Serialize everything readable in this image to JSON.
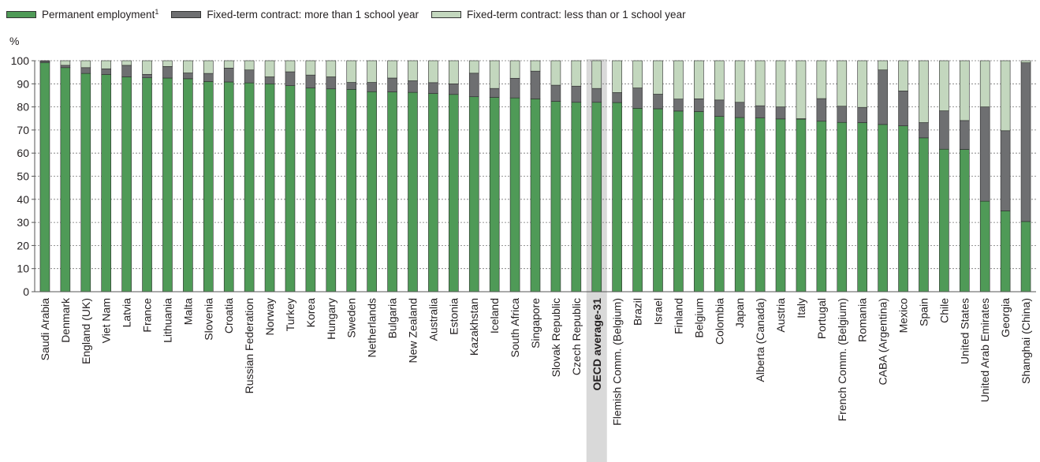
{
  "chart_data": {
    "type": "bar",
    "stacked": true,
    "ylabel": "%",
    "ylim": [
      0,
      100
    ],
    "yticks": [
      0,
      10,
      20,
      30,
      40,
      50,
      60,
      70,
      80,
      90,
      100
    ],
    "grid": true,
    "legend_position": "top",
    "highlight_category": "OECD average-31",
    "categories": [
      "Saudi Arabia",
      "Denmark",
      "England (UK)",
      "Viet Nam",
      "Latvia",
      "France",
      "Lithuania",
      "Malta",
      "Slovenia",
      "Croatia",
      "Russian Federation",
      "Norway",
      "Turkey",
      "Korea",
      "Hungary",
      "Sweden",
      "Netherlands",
      "Bulgaria",
      "New Zealand",
      "Australia",
      "Estonia",
      "Kazakhstan",
      "Iceland",
      "South Africa",
      "Singapore",
      "Slovak Republic",
      "Czech Republic",
      "OECD average-31",
      "Flemish Comm. (Belgium)",
      "Brazil",
      "Israel",
      "Finland",
      "Belgium",
      "Colombia",
      "Japan",
      "Alberta (Canada)",
      "Austria",
      "Italy",
      "Portugal",
      "French Comm. (Belgium)",
      "Romania",
      "CABA (Argentina)",
      "Mexico",
      "Spain",
      "Chile",
      "United States",
      "United Arab Emirates",
      "Georgia",
      "Shanghai (China)"
    ],
    "series": [
      {
        "name": "Permanent employment",
        "name_sup": "1",
        "color": "#4f9a57",
        "values": [
          99.2,
          97.0,
          94.5,
          94.0,
          93.0,
          92.6,
          92.5,
          92.2,
          91.0,
          90.8,
          90.4,
          90.0,
          89.2,
          88.2,
          87.8,
          87.6,
          86.6,
          86.5,
          86.3,
          85.8,
          85.4,
          84.4,
          84.1,
          83.9,
          83.5,
          82.4,
          82.0,
          82.0,
          81.9,
          79.4,
          79.2,
          78.2,
          78.0,
          75.9,
          75.4,
          75.2,
          74.8,
          74.7,
          73.8,
          73.3,
          73.2,
          72.4,
          71.8,
          66.6,
          61.7,
          61.6,
          39.2,
          35.0,
          30.4
        ]
      },
      {
        "name": "Fixed-term contract: more than 1 school year",
        "color": "#6e6f71",
        "values": [
          0.6,
          1.0,
          2.5,
          2.5,
          5.0,
          1.5,
          5.0,
          2.5,
          3.5,
          6.0,
          5.6,
          3.0,
          6.0,
          5.6,
          5.2,
          3.0,
          4.0,
          6.0,
          5.0,
          4.7,
          4.6,
          10.2,
          3.9,
          8.5,
          12.0,
          7.0,
          7.0,
          6.0,
          4.3,
          8.8,
          6.3,
          5.2,
          5.5,
          7.1,
          6.6,
          5.3,
          5.2,
          0.2,
          9.8,
          7.0,
          6.6,
          23.6,
          15.1,
          6.6,
          16.6,
          12.5,
          40.8,
          34.7,
          68.7
        ]
      },
      {
        "name": "Fixed-term contract: less than or 1 school year",
        "color": "#c3d7be",
        "values": [
          0.2,
          2.0,
          3.0,
          3.5,
          2.0,
          5.9,
          2.5,
          5.3,
          5.5,
          3.2,
          4.0,
          7.0,
          4.8,
          6.2,
          7.0,
          9.4,
          9.4,
          7.5,
          8.7,
          9.5,
          10.0,
          5.4,
          12.0,
          7.6,
          4.5,
          10.6,
          11.0,
          12.0,
          13.8,
          11.8,
          14.5,
          16.6,
          16.5,
          17.0,
          18.0,
          19.5,
          20.0,
          25.1,
          16.4,
          19.7,
          20.2,
          4.0,
          13.1,
          26.8,
          21.7,
          25.9,
          20.0,
          30.3,
          0.9
        ]
      }
    ]
  }
}
